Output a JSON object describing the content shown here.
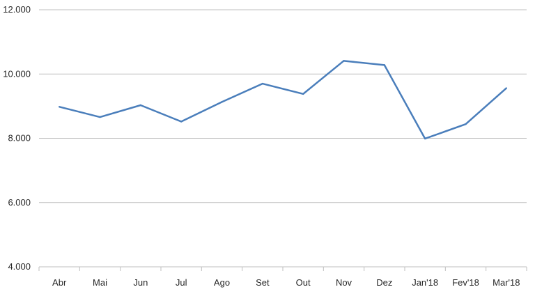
{
  "chart_data": {
    "type": "line",
    "categories": [
      "Abr",
      "Mai",
      "Jun",
      "Jul",
      "Ago",
      "Set",
      "Out",
      "Nov",
      "Dez",
      "Jan'18",
      "Fev'18",
      "Mar'18"
    ],
    "series": [
      {
        "values": [
          8980,
          8660,
          9030,
          8520,
          9130,
          9700,
          9380,
          10410,
          10280,
          7990,
          8440,
          9560
        ]
      }
    ],
    "ylim": [
      4000,
      12000
    ],
    "yticks": [
      4000,
      6000,
      8000,
      10000,
      12000
    ],
    "ytick_labels": [
      "4.000",
      "6.000",
      "8.000",
      "10.000",
      "12.000"
    ],
    "grid": true,
    "colors": {
      "line": "#4a7ebb",
      "grid": "#bfbfbf",
      "axis": "#bfbfbf"
    },
    "title": "",
    "xlabel": "",
    "ylabel": ""
  }
}
